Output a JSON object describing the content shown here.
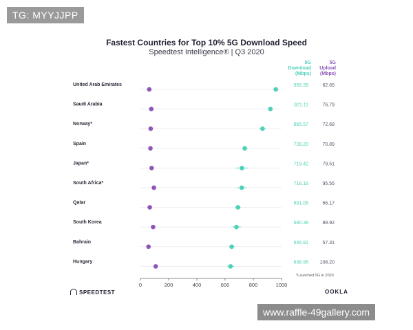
{
  "overlay": {
    "top_left_text": "TG: MYYJJPP",
    "bottom_right_text": "www.raffle-49gallery.com"
  },
  "brand": {
    "left": "SPEEDTEST",
    "right": "OOKLA"
  },
  "colors": {
    "download": "#4fd1b7",
    "upload": "#8e56b8",
    "row_line": "#eeeaf2",
    "axis": "#666666"
  },
  "chart_data": {
    "type": "scatter",
    "title": "Fastest Countries for Top 10% 5G Download Speed",
    "subtitle": "Speedtest Intelligence® | Q3 2020",
    "column_headers": {
      "download": [
        "5G",
        "Download",
        "(Mbps)"
      ],
      "upload": [
        "5G",
        "Upload",
        "(Mbps)"
      ]
    },
    "footnote": "*Launched 5G in 2020",
    "categories": [
      "United Arab Emirates",
      "Saudi Arabia",
      "Norway*",
      "Spain",
      "Japan*",
      "South Africa*",
      "Qatar",
      "South Korea",
      "Bahrain",
      "Hungary"
    ],
    "series": [
      {
        "name": "Download",
        "values": [
          959.39,
          921.11,
          865.57,
          739.2,
          719.42,
          718.18,
          691.05,
          680.38,
          646.81,
          638.95
        ],
        "labels": [
          "959.39",
          "921.11",
          "865.57",
          "739.20",
          "719.42",
          "718.18",
          "691.05",
          "680.38",
          "646.81",
          "638.95"
        ],
        "ci_half_width": [
          20,
          10,
          25,
          20,
          45,
          35,
          20,
          35,
          20,
          25
        ]
      },
      {
        "name": "Upload",
        "values": [
          62.65,
          76.79,
          72.68,
          70.89,
          79.51,
          95.55,
          66.17,
          89.92,
          57.31,
          108.2
        ],
        "labels": [
          "62.65",
          "76.79",
          "72.68",
          "70.89",
          "79.51",
          "95.55",
          "66.17",
          "89.92",
          "57.31",
          "108.20"
        ]
      }
    ],
    "x_ticks": [
      "0",
      "200",
      "400",
      "600",
      "800",
      "1000"
    ],
    "xlim": [
      0,
      1000
    ],
    "grid": false,
    "legend": "column headers top-right"
  }
}
